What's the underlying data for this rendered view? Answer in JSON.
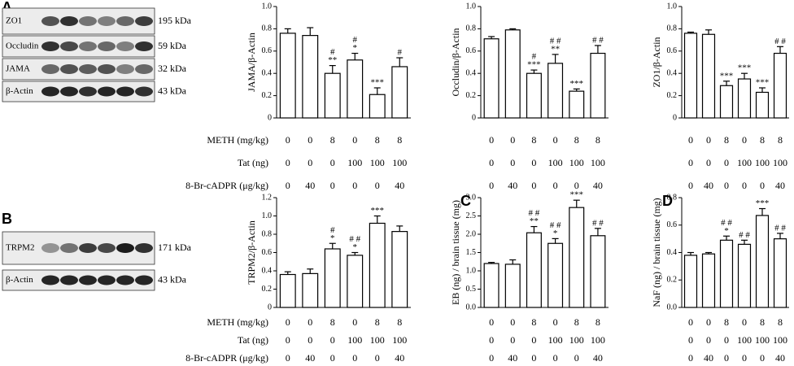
{
  "panels": [
    "A",
    "B",
    "C",
    "D"
  ],
  "blots": [
    {
      "bands": [
        {
          "label": "ZO1",
          "size": "195 kDa"
        },
        {
          "label": "Occludin",
          "size": "59 kDa"
        },
        {
          "label": "JAMA",
          "size": "32 kDa"
        },
        {
          "label": "β-Actin",
          "size": "43 kDa"
        }
      ]
    },
    {
      "bands": [
        {
          "label": "TRPM2",
          "size": "171 kDa"
        },
        {
          "label": "β-Actin",
          "size": "43 kDa"
        }
      ]
    }
  ],
  "treatment_rows": [
    {
      "label": "METH (mg/kg)",
      "values": [
        0,
        0,
        8,
        0,
        8,
        8
      ]
    },
    {
      "label": "Tat (ng)",
      "values": [
        0,
        0,
        0,
        100,
        100,
        100
      ]
    },
    {
      "label": "8-Br-cADPR (μg/kg)",
      "values": [
        0,
        40,
        0,
        0,
        0,
        40
      ]
    }
  ],
  "chart_data": [
    {
      "type": "bar",
      "y_label": "JAMA/β-Actin",
      "values": [
        0.76,
        0.74,
        0.4,
        0.52,
        0.21,
        0.46
      ],
      "errors": [
        0.04,
        0.07,
        0.07,
        0.06,
        0.06,
        0.08
      ],
      "annotations": [
        [],
        [],
        [
          "#",
          "**"
        ],
        [
          "#",
          "*"
        ],
        [
          "***"
        ],
        [
          "#"
        ]
      ],
      "ylim": [
        0,
        1
      ],
      "yticks": [
        0,
        0.2,
        0.4,
        0.6,
        0.8,
        {
          "value": 1,
          "label": "1.0"
        }
      ],
      "color": "#ffffff"
    },
    {
      "type": "bar",
      "y_label": "Occludin/β-Actin",
      "values": [
        0.71,
        0.79,
        0.4,
        0.49,
        0.24,
        0.58
      ],
      "errors": [
        0.02,
        0.01,
        0.03,
        0.08,
        0.02,
        0.07
      ],
      "annotations": [
        [],
        [],
        [
          "#",
          "***"
        ],
        [
          "# #",
          "**"
        ],
        [
          "***"
        ],
        [
          "# #"
        ]
      ],
      "ylim": [
        0,
        1
      ],
      "yticks": [
        0,
        0.2,
        0.4,
        0.6,
        0.8,
        {
          "value": 1,
          "label": "1.0"
        }
      ],
      "color": "#ffffff"
    },
    {
      "type": "bar",
      "y_label": "ZO1/β-Actin",
      "values": [
        0.76,
        0.75,
        0.29,
        0.35,
        0.23,
        0.58
      ],
      "errors": [
        0.01,
        0.04,
        0.04,
        0.05,
        0.04,
        0.06
      ],
      "annotations": [
        [],
        [],
        [
          "***"
        ],
        [
          "***"
        ],
        [
          "***"
        ],
        [
          "# #"
        ]
      ],
      "ylim": [
        0,
        1
      ],
      "yticks": [
        0,
        0.2,
        0.4,
        0.6,
        0.8,
        {
          "value": 1,
          "label": "1.0"
        }
      ],
      "color": "#ffffff"
    },
    {
      "type": "bar",
      "y_label": "TRPM2/β-Actin",
      "values": [
        0.36,
        0.37,
        0.64,
        0.57,
        0.92,
        0.83
      ],
      "errors": [
        0.03,
        0.05,
        0.06,
        0.03,
        0.08,
        0.06
      ],
      "annotations": [
        [],
        [],
        [
          "#",
          "*"
        ],
        [
          "# #",
          "*"
        ],
        [
          "***"
        ],
        []
      ],
      "ylim": [
        0,
        1.2
      ],
      "yticks": [
        0,
        0.2,
        0.4,
        0.6,
        0.8,
        {
          "value": 1,
          "label": "1.0"
        },
        1.2
      ],
      "color": "#ffffff"
    },
    {
      "type": "bar",
      "y_label": "EB (ng) / brain tissue (mg)",
      "values": [
        1.2,
        1.18,
        2.04,
        1.75,
        2.73,
        1.96
      ],
      "errors": [
        0.03,
        0.12,
        0.17,
        0.13,
        0.2,
        0.2
      ],
      "annotations": [
        [],
        [],
        [
          "# #",
          "**"
        ],
        [
          "# #",
          "*"
        ],
        [
          "***"
        ],
        [
          "# #"
        ]
      ],
      "ylim": [
        0,
        3
      ],
      "yticks": [
        {
          "value": 0,
          "label": "0.0"
        },
        0.5,
        {
          "value": 1,
          "label": "1.0"
        },
        1.5,
        {
          "value": 2,
          "label": "2.0"
        },
        2.5,
        {
          "value": 3,
          "label": "3.0"
        }
      ],
      "color": "#ffffff"
    },
    {
      "type": "bar",
      "y_label": "NaF (ng) / brain tissue (mg)",
      "values": [
        0.38,
        0.39,
        0.49,
        0.46,
        0.67,
        0.5
      ],
      "errors": [
        0.02,
        0.01,
        0.03,
        0.03,
        0.05,
        0.04
      ],
      "annotations": [
        [],
        [],
        [
          "# #",
          "*"
        ],
        [
          "# #"
        ],
        [
          "***"
        ],
        [
          "# #"
        ]
      ],
      "ylim": [
        0,
        0.8
      ],
      "yticks": [
        {
          "value": 0,
          "label": "0.0"
        },
        0.2,
        0.4,
        0.6,
        0.8
      ],
      "color": "#ffffff"
    }
  ]
}
